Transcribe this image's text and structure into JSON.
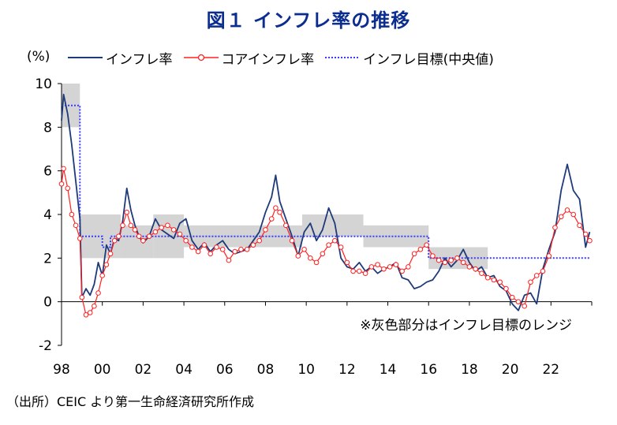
{
  "title": "図１ インフレ率の推移",
  "source": "（出所）CEIC より第一生命経済研究所作成",
  "legend": {
    "unit": "(%)",
    "items": [
      {
        "key": "inflation",
        "label": "インフレ率",
        "color": "#1f3a7a",
        "style": "solid"
      },
      {
        "key": "core",
        "label": "コアインフレ率",
        "color": "#ff2020",
        "style": "marker"
      },
      {
        "key": "target",
        "label": "インフレ目標(中央値)",
        "color": "#3b3bff",
        "style": "dotted"
      }
    ]
  },
  "chart_data": {
    "type": "line",
    "ylim": [
      -2,
      10
    ],
    "yticks": [
      "-2",
      "0",
      "2",
      "4",
      "6",
      "8",
      "10"
    ],
    "xlim": [
      1998,
      2024
    ],
    "xticks": [
      {
        "x": 1998,
        "label": "98"
      },
      {
        "x": 2000,
        "label": "00"
      },
      {
        "x": 2002,
        "label": "02"
      },
      {
        "x": 2004,
        "label": "04"
      },
      {
        "x": 2006,
        "label": "06"
      },
      {
        "x": 2008,
        "label": "08"
      },
      {
        "x": 2010,
        "label": "10"
      },
      {
        "x": 2012,
        "label": "12"
      },
      {
        "x": 2014,
        "label": "14"
      },
      {
        "x": 2016,
        "label": "16"
      },
      {
        "x": 2018,
        "label": "18"
      },
      {
        "x": 2020,
        "label": "20"
      },
      {
        "x": 2022,
        "label": "22"
      }
    ],
    "annotation": "※灰色部分はインフレ目標のレンジ",
    "target_range": [
      {
        "from": 1998.0,
        "to": 1998.9,
        "low": 8,
        "high": 10
      },
      {
        "from": 1998.9,
        "to": 2000.9,
        "low": 2,
        "high": 4
      },
      {
        "from": 2000.9,
        "to": 2002.5,
        "low": 2,
        "high": 3.5
      },
      {
        "from": 2002.5,
        "to": 2004.0,
        "low": 2,
        "high": 4
      },
      {
        "from": 2004.0,
        "to": 2009.8,
        "low": 2.5,
        "high": 3.5
      },
      {
        "from": 2009.8,
        "to": 2012.8,
        "low": 3,
        "high": 4
      },
      {
        "from": 2012.8,
        "to": 2016.0,
        "low": 2.5,
        "high": 3.5
      },
      {
        "from": 2016.0,
        "to": 2018.9,
        "low": 1.5,
        "high": 2.5
      }
    ],
    "series": [
      {
        "name": "インフレ率",
        "x": [
          1998.0,
          1998.1,
          1998.3,
          1998.5,
          1998.7,
          1998.9,
          1999.0,
          1999.2,
          1999.4,
          1999.6,
          1999.8,
          2000.0,
          2000.2,
          2000.4,
          2000.6,
          2000.8,
          2001.0,
          2001.2,
          2001.4,
          2001.6,
          2001.8,
          2002.0,
          2002.3,
          2002.6,
          2002.9,
          2003.2,
          2003.5,
          2003.8,
          2004.1,
          2004.4,
          2004.7,
          2005.0,
          2005.3,
          2005.6,
          2005.9,
          2006.2,
          2006.5,
          2006.8,
          2007.1,
          2007.4,
          2007.7,
          2008.0,
          2008.3,
          2008.5,
          2008.7,
          2009.0,
          2009.3,
          2009.6,
          2009.9,
          2010.2,
          2010.5,
          2010.8,
          2011.1,
          2011.4,
          2011.7,
          2012.0,
          2012.3,
          2012.6,
          2012.9,
          2013.2,
          2013.5,
          2013.8,
          2014.1,
          2014.4,
          2014.7,
          2015.0,
          2015.3,
          2015.6,
          2015.9,
          2016.2,
          2016.5,
          2016.8,
          2017.1,
          2017.4,
          2017.7,
          2018.0,
          2018.3,
          2018.6,
          2018.9,
          2019.2,
          2019.5,
          2019.8,
          2020.1,
          2020.4,
          2020.7,
          2021.0,
          2021.3,
          2021.6,
          2021.9,
          2022.2,
          2022.5,
          2022.8,
          2023.1,
          2023.4,
          2023.7,
          2023.9
        ],
        "y": [
          8.3,
          9.5,
          8.6,
          7.2,
          5.5,
          3.8,
          0.2,
          0.6,
          0.3,
          0.8,
          1.8,
          1.2,
          2.6,
          2.2,
          2.9,
          2.8,
          3.7,
          5.2,
          4.2,
          3.5,
          3.0,
          2.7,
          3.0,
          3.8,
          3.3,
          3.1,
          2.9,
          3.6,
          3.8,
          2.8,
          2.4,
          2.7,
          2.3,
          2.6,
          2.8,
          2.4,
          2.2,
          2.3,
          2.4,
          2.8,
          3.2,
          4.1,
          4.8,
          5.8,
          4.6,
          3.8,
          3.0,
          2.1,
          3.2,
          3.6,
          2.8,
          3.3,
          4.3,
          3.6,
          2.0,
          1.6,
          1.5,
          1.8,
          1.4,
          1.6,
          1.3,
          1.5,
          1.6,
          1.8,
          1.1,
          1.0,
          0.6,
          0.7,
          0.9,
          1.0,
          1.4,
          2.0,
          1.6,
          1.9,
          2.4,
          1.8,
          1.4,
          1.6,
          1.1,
          1.2,
          0.7,
          0.5,
          -0.1,
          -0.4,
          0.3,
          0.4,
          -0.1,
          1.5,
          2.4,
          3.2,
          5.1,
          6.3,
          5.1,
          4.7,
          2.5,
          3.2
        ]
      },
      {
        "name": "コアインフレ率",
        "x": [
          1998.0,
          1998.1,
          1998.3,
          1998.5,
          1998.7,
          1998.9,
          1999.0,
          1999.2,
          1999.4,
          1999.6,
          1999.8,
          2000.0,
          2000.2,
          2000.4,
          2000.6,
          2000.8,
          2001.0,
          2001.2,
          2001.4,
          2001.6,
          2001.8,
          2002.0,
          2002.3,
          2002.6,
          2002.9,
          2003.2,
          2003.5,
          2003.8,
          2004.1,
          2004.4,
          2004.7,
          2005.0,
          2005.3,
          2005.6,
          2005.9,
          2006.2,
          2006.5,
          2006.8,
          2007.1,
          2007.4,
          2007.7,
          2008.0,
          2008.3,
          2008.5,
          2008.7,
          2009.0,
          2009.3,
          2009.6,
          2009.9,
          2010.2,
          2010.5,
          2010.8,
          2011.1,
          2011.4,
          2011.7,
          2012.0,
          2012.3,
          2012.6,
          2012.9,
          2013.2,
          2013.5,
          2013.8,
          2014.1,
          2014.4,
          2014.7,
          2015.0,
          2015.3,
          2015.6,
          2015.9,
          2016.2,
          2016.5,
          2016.8,
          2017.1,
          2017.4,
          2017.7,
          2018.0,
          2018.3,
          2018.6,
          2018.9,
          2019.2,
          2019.5,
          2019.8,
          2020.1,
          2020.4,
          2020.7,
          2021.0,
          2021.3,
          2021.6,
          2021.9,
          2022.2,
          2022.5,
          2022.8,
          2023.1,
          2023.4,
          2023.7,
          2023.9
        ],
        "y": [
          5.4,
          6.1,
          5.2,
          4.0,
          3.5,
          2.9,
          0.2,
          -0.6,
          -0.5,
          -0.2,
          0.4,
          1.2,
          1.7,
          2.2,
          2.8,
          3.0,
          3.5,
          4.1,
          3.5,
          3.3,
          3.0,
          2.8,
          3.0,
          3.2,
          3.4,
          3.5,
          3.3,
          3.1,
          2.8,
          2.5,
          2.3,
          2.6,
          2.2,
          2.5,
          2.4,
          1.9,
          2.3,
          2.4,
          2.4,
          2.6,
          2.8,
          3.3,
          3.8,
          4.3,
          4.1,
          3.5,
          2.8,
          2.1,
          2.4,
          2.0,
          1.8,
          2.2,
          2.6,
          2.8,
          2.5,
          1.8,
          1.4,
          1.4,
          1.3,
          1.6,
          1.7,
          1.5,
          1.6,
          1.7,
          1.4,
          1.6,
          2.2,
          2.4,
          2.6,
          2.1,
          1.9,
          1.8,
          1.9,
          2.0,
          1.8,
          1.6,
          1.5,
          1.3,
          1.1,
          1.0,
          0.9,
          0.6,
          0.2,
          0.0,
          -0.2,
          0.9,
          1.2,
          1.4,
          2.1,
          3.4,
          3.9,
          4.2,
          4.0,
          3.5,
          3.1,
          2.8
        ]
      },
      {
        "name": "インフレ目標(中央値)",
        "x": [
          1998.0,
          1998.9,
          1998.9,
          2000.0,
          2000.0,
          2000.4,
          2000.4,
          2000.9,
          2000.9,
          2016.0,
          2016.0,
          2023.9
        ],
        "y": [
          9.0,
          9.0,
          3.0,
          3.0,
          2.5,
          2.5,
          3.0,
          3.0,
          3.0,
          3.0,
          2.0,
          2.0
        ]
      }
    ]
  }
}
